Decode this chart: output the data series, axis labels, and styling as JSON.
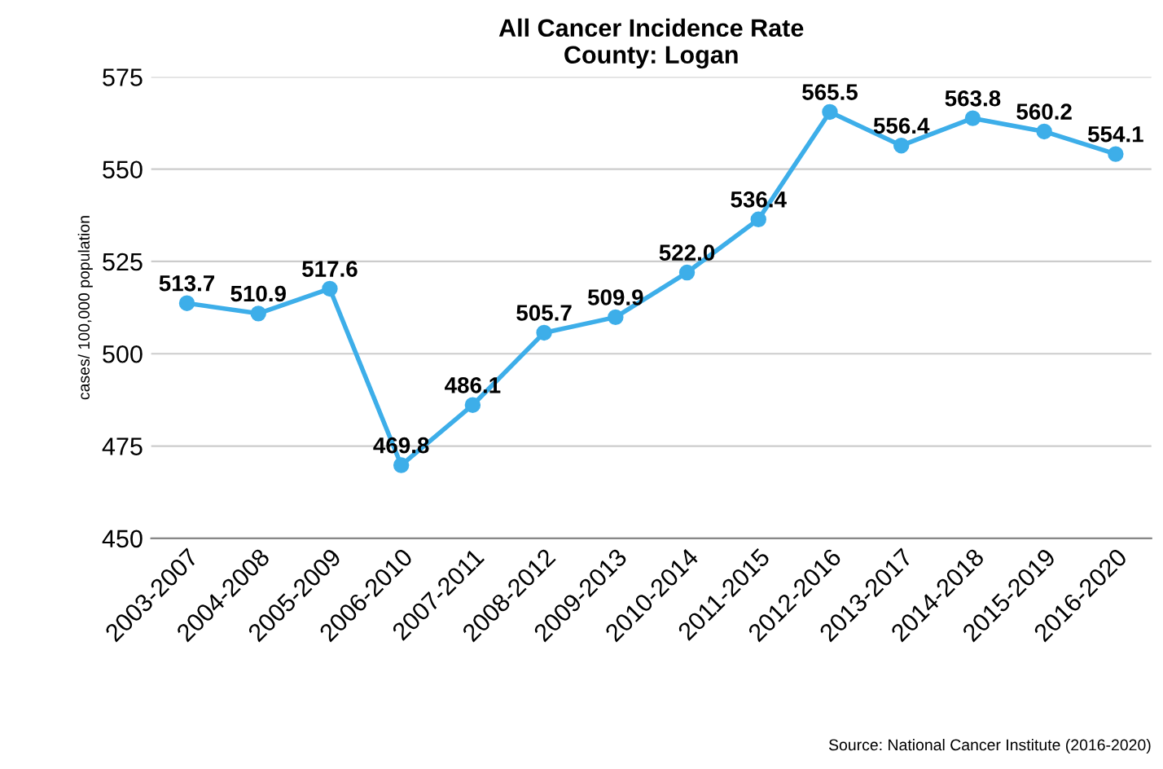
{
  "chart_data": {
    "type": "line",
    "title": "All Cancer Incidence Rate\nCounty: Logan",
    "ylabel": "cases/ 100,000 population",
    "categories": [
      "2003-2007",
      "2004-2008",
      "2005-2009",
      "2006-2010",
      "2007-2011",
      "2008-2012",
      "2009-2013",
      "2010-2014",
      "2011-2015",
      "2012-2016",
      "2013-2017",
      "2014-2018",
      "2015-2019",
      "2016-2020"
    ],
    "series": [
      {
        "color": "#3daee9",
        "values": [
          513.7,
          510.9,
          517.6,
          469.8,
          486.1,
          505.7,
          509.9,
          522.0,
          536.4,
          565.5,
          556.4,
          563.8,
          560.2,
          554.1
        ],
        "value_labels": [
          "513.7",
          "510.9",
          "517.6",
          "469.8",
          "486.1",
          "505.7",
          "509.9",
          "522.0",
          "536.4",
          "565.5",
          "556.4",
          "563.8",
          "560.2",
          "554.1"
        ]
      }
    ],
    "ylim": [
      450,
      575
    ],
    "yticks": [
      450,
      475,
      500,
      525,
      550,
      575
    ],
    "grid": "y",
    "marker": "circle",
    "line_style": "solid",
    "annotations": [
      "Source: National Cancer Institute (2016-2020)"
    ]
  }
}
